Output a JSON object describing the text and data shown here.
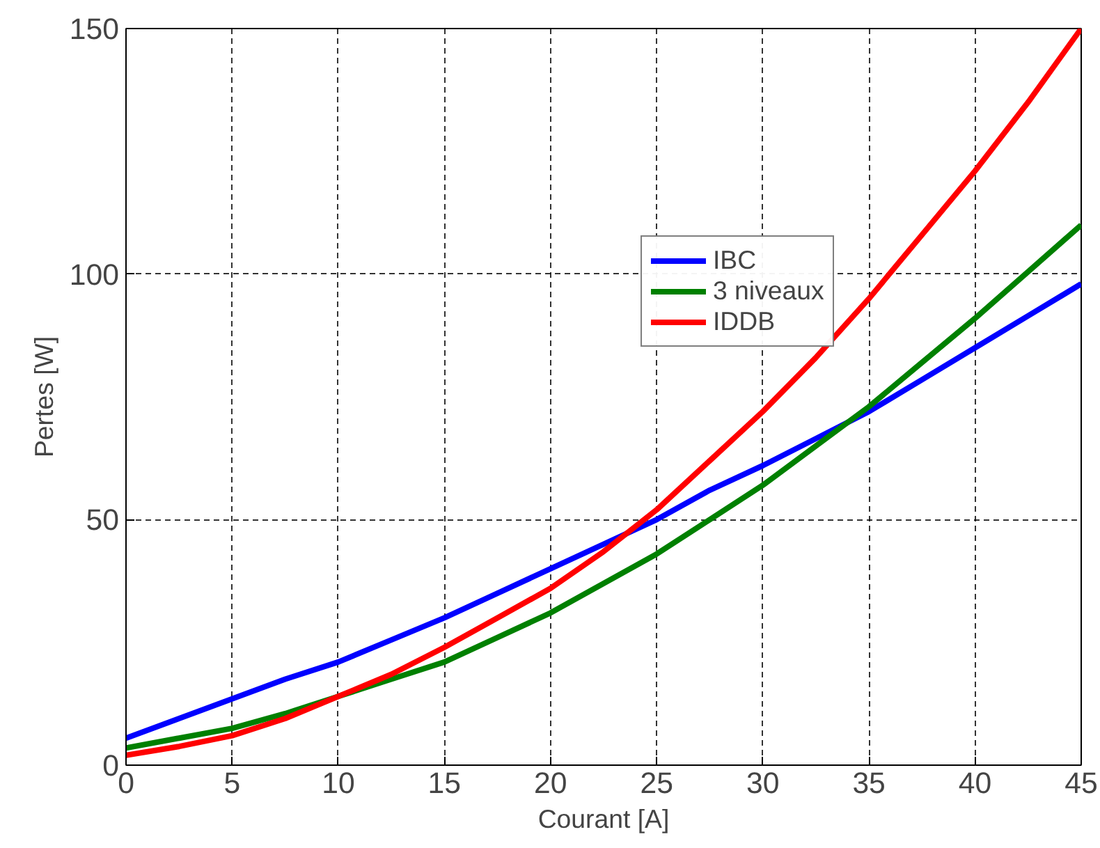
{
  "chart_data": {
    "type": "line",
    "xlabel": "Courant [A]",
    "ylabel": "Pertes [W]",
    "x": [
      0,
      2.5,
      5,
      7.5,
      10,
      12.5,
      15,
      17.5,
      20,
      22.5,
      25,
      27.5,
      30,
      32.5,
      35,
      37.5,
      40,
      42.5,
      45
    ],
    "series": [
      {
        "name": "IBC",
        "color": "#0000ff",
        "values": [
          5.5,
          9.5,
          13.5,
          17.5,
          21,
          25.5,
          30,
          35,
          40,
          45,
          50,
          56,
          61,
          66.5,
          72,
          78.5,
          85,
          91.5,
          98
        ]
      },
      {
        "name": "3 niveaux",
        "color": "#008000",
        "values": [
          3.5,
          5.5,
          7.5,
          10.5,
          14,
          17.5,
          21,
          26,
          31,
          37,
          43,
          50,
          57,
          65,
          73,
          82,
          91,
          100.5,
          110
        ]
      },
      {
        "name": "IDDB",
        "color": "#ff0000",
        "values": [
          2,
          3.8,
          6,
          9.5,
          14,
          18.5,
          24,
          30,
          36,
          43.5,
          52,
          62,
          72,
          83,
          95,
          108,
          121,
          135,
          150
        ]
      }
    ],
    "xlim": [
      0,
      45
    ],
    "ylim": [
      0,
      150
    ],
    "xticks": [
      0,
      5,
      10,
      15,
      20,
      25,
      30,
      35,
      40,
      45
    ],
    "yticks": [
      0,
      50,
      100,
      150
    ],
    "grid": true,
    "legend": "top right",
    "line_style": "solid",
    "marker": "none"
  }
}
